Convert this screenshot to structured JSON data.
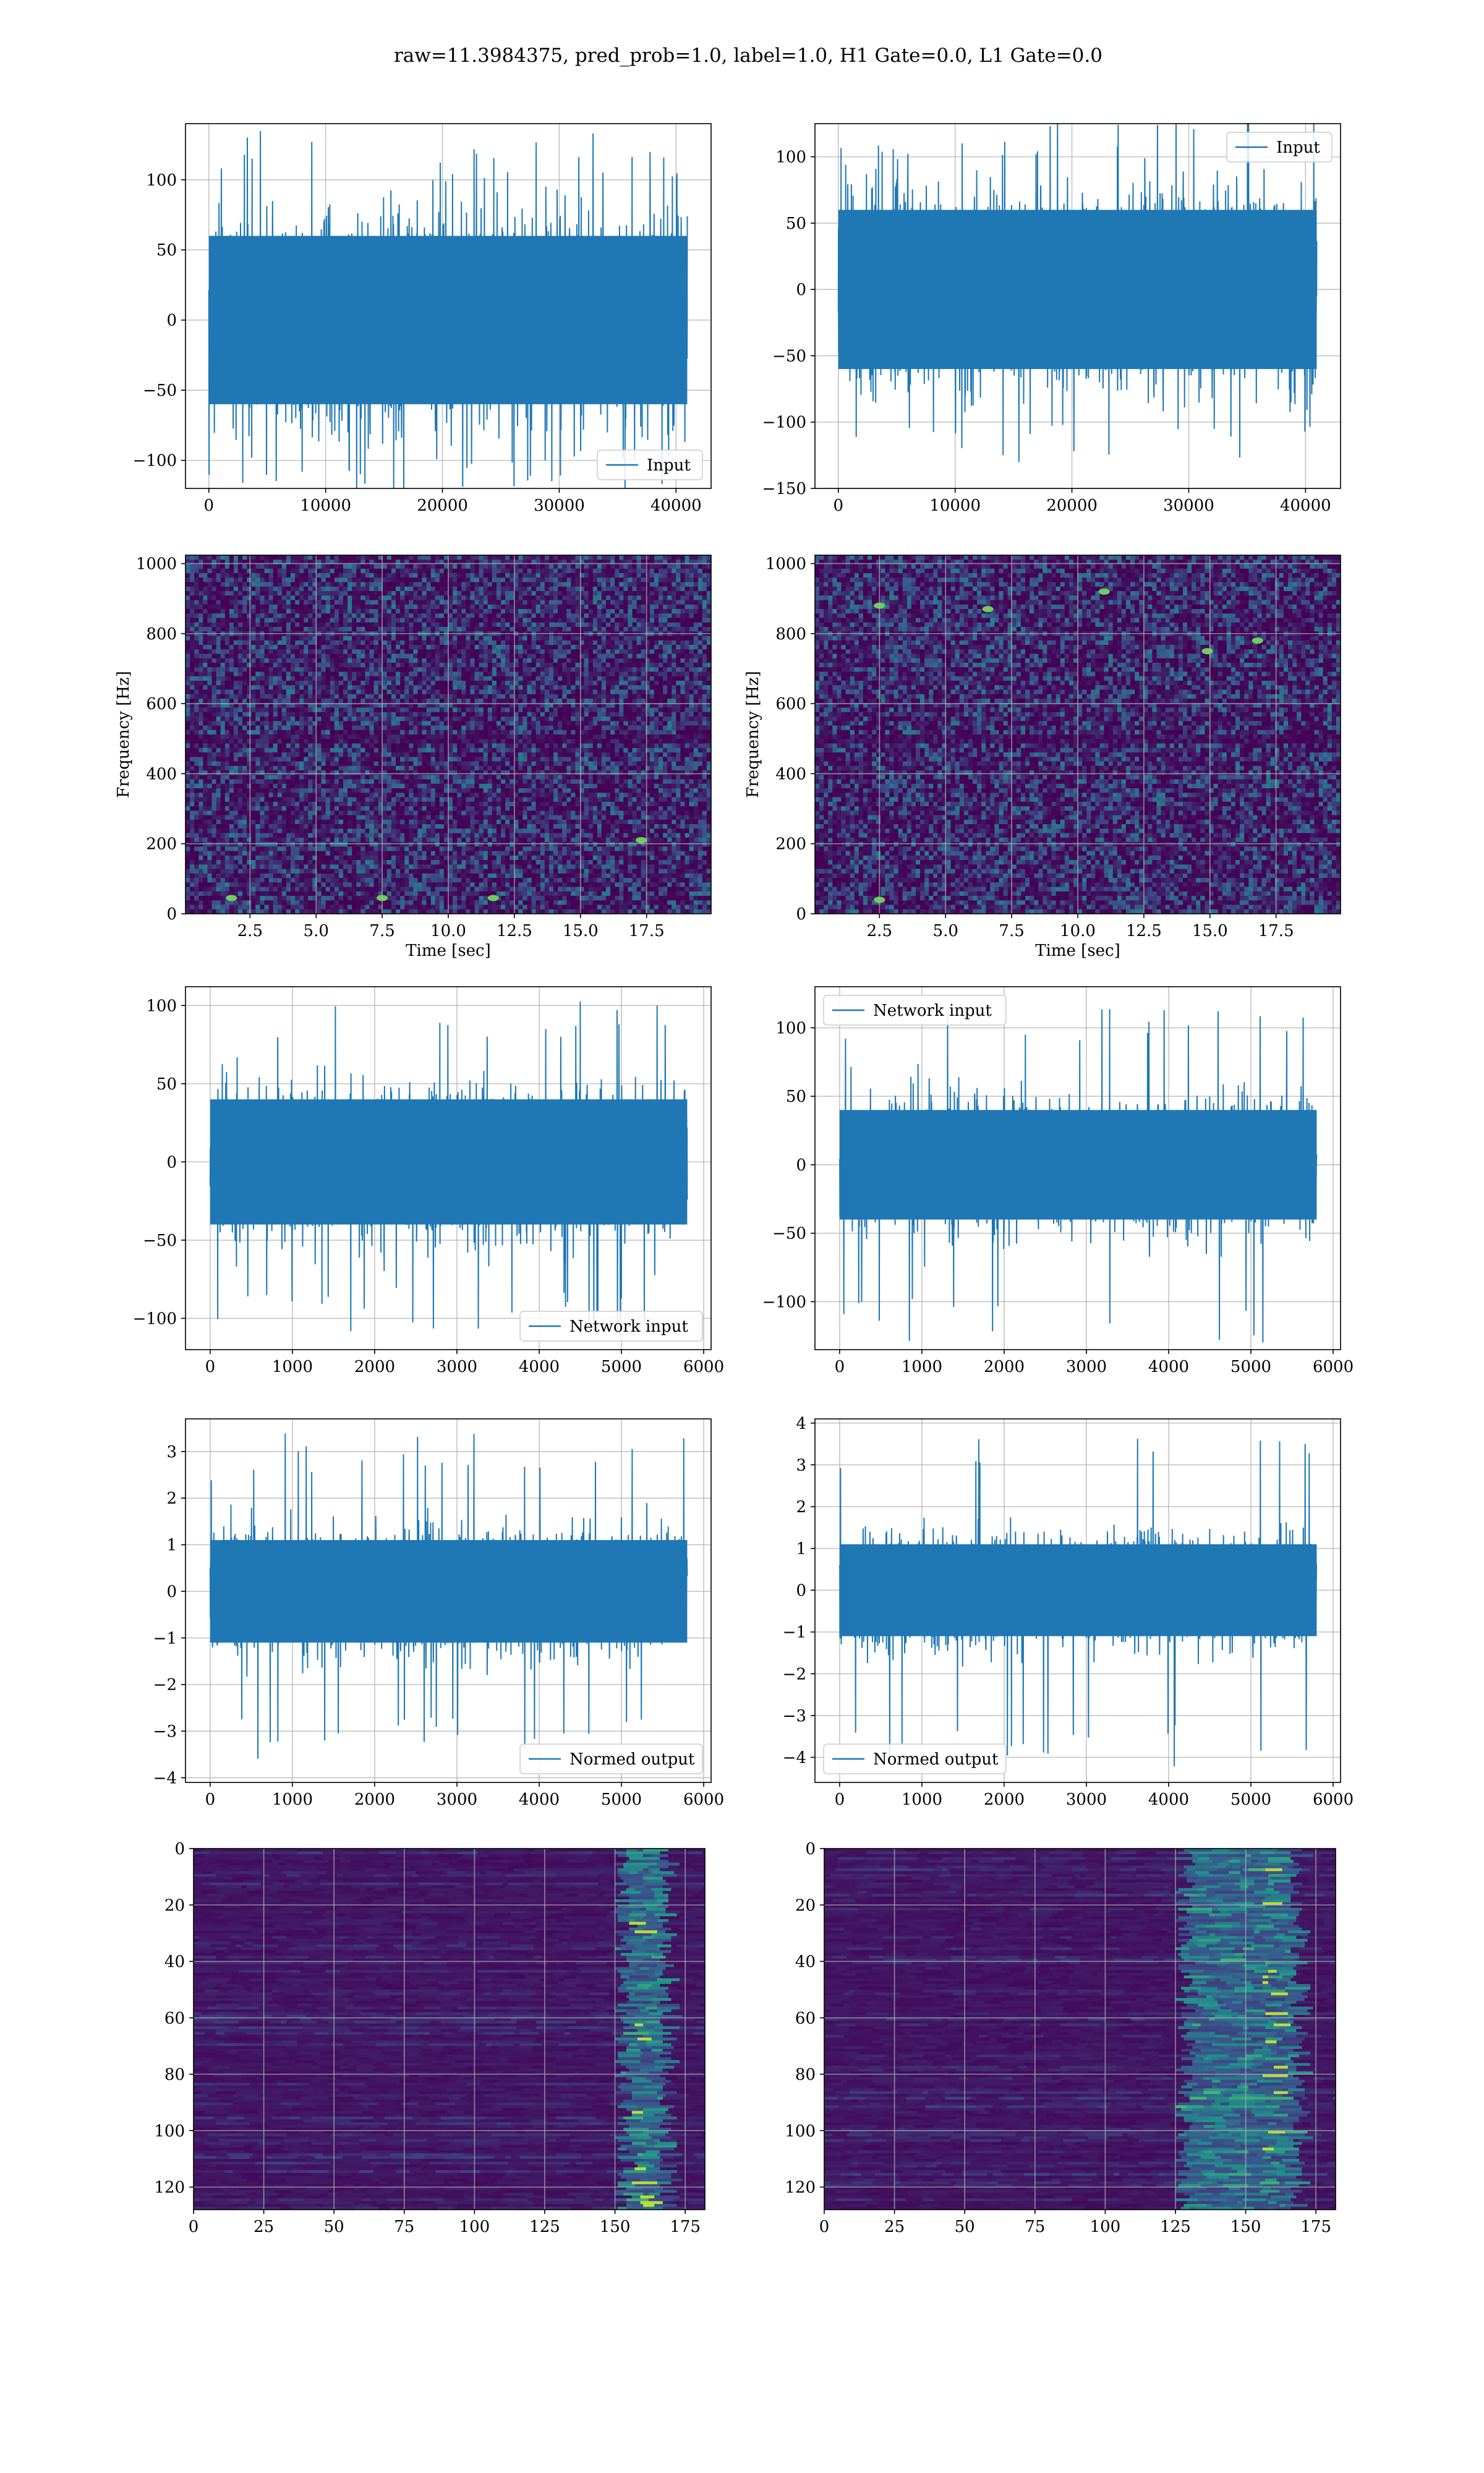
{
  "figure": {
    "suptitle": "raw=11.3984375, pred_prob=1.0, label=1.0, H1 Gate=0.0, L1 Gate=0.0"
  },
  "colors": {
    "line": "#1f77b4",
    "grid": "#b0b0b0",
    "viridis": [
      "#440154",
      "#3b528b",
      "#21918c",
      "#5ec962",
      "#fde725"
    ]
  },
  "chart_data": [
    {
      "id": "h1_input",
      "type": "line",
      "ylabel": "",
      "xlabel": "",
      "legend": {
        "label": "Input",
        "loc": "lower-right"
      },
      "xlim": [
        -2000,
        43000
      ],
      "ylim": [
        -120,
        140
      ],
      "xticks": [
        0,
        10000,
        20000,
        30000,
        40000
      ],
      "xtick_labels": [
        "0",
        "10000",
        "20000",
        "30000",
        "40000"
      ],
      "yticks": [
        -100,
        -50,
        0,
        50,
        100
      ],
      "ytick_labels": [
        "−100",
        "−50",
        "0",
        "50",
        "100"
      ],
      "signal": {
        "x_start": 0,
        "x_end": 40960,
        "core_amplitude": 60,
        "spike_max": 135,
        "spike_min": -128
      }
    },
    {
      "id": "l1_input",
      "type": "line",
      "ylabel": "",
      "xlabel": "",
      "legend": {
        "label": "Input",
        "loc": "upper-right"
      },
      "xlim": [
        -2000,
        43000
      ],
      "ylim": [
        -150,
        125
      ],
      "xticks": [
        0,
        10000,
        20000,
        30000,
        40000
      ],
      "xtick_labels": [
        "0",
        "10000",
        "20000",
        "30000",
        "40000"
      ],
      "yticks": [
        -150,
        -100,
        -50,
        0,
        50,
        100
      ],
      "ytick_labels": [
        "−150",
        "−100",
        "−50",
        "0",
        "50",
        "100"
      ],
      "signal": {
        "x_start": 0,
        "x_end": 40960,
        "core_amplitude": 60,
        "spike_max": 130,
        "spike_min": -135
      }
    },
    {
      "id": "h1_spectrogram",
      "type": "heatmap",
      "xlabel": "Time [sec]",
      "ylabel": "Frequency [Hz]",
      "xlim": [
        0.06,
        19.94
      ],
      "ylim": [
        0,
        1024
      ],
      "xticks": [
        2.5,
        5.0,
        7.5,
        10.0,
        12.5,
        15.0,
        17.5
      ],
      "xtick_labels": [
        "2.5",
        "5.0",
        "7.5",
        "10.0",
        "12.5",
        "15.0",
        "17.5"
      ],
      "yticks": [
        0,
        200,
        400,
        600,
        800,
        1000
      ],
      "ytick_labels": [
        "0",
        "200",
        "400",
        "600",
        "800",
        "1000"
      ],
      "colormap": "viridis",
      "hotspots": [
        [
          1.8,
          45
        ],
        [
          11.7,
          45
        ],
        [
          17.3,
          210
        ],
        [
          7.5,
          45
        ]
      ]
    },
    {
      "id": "l1_spectrogram",
      "type": "heatmap",
      "xlabel": "Time [sec]",
      "ylabel": "Frequency [Hz]",
      "xlim": [
        0.06,
        19.94
      ],
      "ylim": [
        0,
        1024
      ],
      "xticks": [
        2.5,
        5.0,
        7.5,
        10.0,
        12.5,
        15.0,
        17.5
      ],
      "xtick_labels": [
        "2.5",
        "5.0",
        "7.5",
        "10.0",
        "12.5",
        "15.0",
        "17.5"
      ],
      "yticks": [
        0,
        200,
        400,
        600,
        800,
        1000
      ],
      "ytick_labels": [
        "0",
        "200",
        "400",
        "600",
        "800",
        "1000"
      ],
      "colormap": "viridis",
      "hotspots": [
        [
          6.6,
          870
        ],
        [
          11.0,
          920
        ],
        [
          2.5,
          880
        ],
        [
          14.9,
          750
        ],
        [
          16.8,
          780
        ],
        [
          2.5,
          40
        ]
      ]
    },
    {
      "id": "h1_network_input",
      "type": "line",
      "ylabel": "",
      "xlabel": "",
      "legend": {
        "label": "Network input",
        "loc": "lower-right"
      },
      "xlim": [
        -300,
        6090
      ],
      "ylim": [
        -120,
        112
      ],
      "xticks": [
        0,
        1000,
        2000,
        3000,
        4000,
        5000,
        6000
      ],
      "xtick_labels": [
        "0",
        "1000",
        "2000",
        "3000",
        "4000",
        "5000",
        "6000"
      ],
      "yticks": [
        -100,
        -50,
        0,
        50,
        100
      ],
      "ytick_labels": [
        "−100",
        "−50",
        "0",
        "50",
        "100"
      ],
      "signal": {
        "x_start": 0,
        "x_end": 5800,
        "core_amplitude": 40,
        "spike_max": 103,
        "spike_min": -112
      }
    },
    {
      "id": "l1_network_input",
      "type": "line",
      "ylabel": "",
      "xlabel": "",
      "legend": {
        "label": "Network input",
        "loc": "upper-left"
      },
      "xlim": [
        -300,
        6090
      ],
      "ylim": [
        -135,
        130
      ],
      "xticks": [
        0,
        1000,
        2000,
        3000,
        4000,
        5000,
        6000
      ],
      "xtick_labels": [
        "0",
        "1000",
        "2000",
        "3000",
        "4000",
        "5000",
        "6000"
      ],
      "yticks": [
        -100,
        -50,
        0,
        50,
        100
      ],
      "ytick_labels": [
        "−100",
        "−50",
        "0",
        "50",
        "100"
      ],
      "signal": {
        "x_start": 0,
        "x_end": 5800,
        "core_amplitude": 40,
        "spike_max": 117,
        "spike_min": -130
      }
    },
    {
      "id": "h1_normed_output",
      "type": "line",
      "ylabel": "",
      "xlabel": "",
      "legend": {
        "label": "Normed output",
        "loc": "lower-right"
      },
      "xlim": [
        -300,
        6090
      ],
      "ylim": [
        -4.1,
        3.7
      ],
      "xticks": [
        0,
        1000,
        2000,
        3000,
        4000,
        5000,
        6000
      ],
      "xtick_labels": [
        "0",
        "1000",
        "2000",
        "3000",
        "4000",
        "5000",
        "6000"
      ],
      "yticks": [
        -4,
        -3,
        -2,
        -1,
        0,
        1,
        2,
        3
      ],
      "ytick_labels": [
        "−4",
        "−3",
        "−2",
        "−1",
        "0",
        "1",
        "2",
        "3"
      ],
      "signal": {
        "x_start": 0,
        "x_end": 5800,
        "core_amplitude": 1.1,
        "spike_max": 3.4,
        "spike_min": -3.6
      }
    },
    {
      "id": "l1_normed_output",
      "type": "line",
      "ylabel": "",
      "xlabel": "",
      "legend": {
        "label": "Normed output",
        "loc": "lower-left"
      },
      "xlim": [
        -300,
        6090
      ],
      "ylim": [
        -4.6,
        4.1
      ],
      "xticks": [
        0,
        1000,
        2000,
        3000,
        4000,
        5000,
        6000
      ],
      "xtick_labels": [
        "0",
        "1000",
        "2000",
        "3000",
        "4000",
        "5000",
        "6000"
      ],
      "yticks": [
        -4,
        -3,
        -2,
        -1,
        0,
        1,
        2,
        3,
        4
      ],
      "ytick_labels": [
        "−4",
        "−3",
        "−2",
        "−1",
        "0",
        "1",
        "2",
        "3",
        "4"
      ],
      "signal": {
        "x_start": 0,
        "x_end": 5800,
        "core_amplitude": 1.1,
        "spike_max": 3.7,
        "spike_min": -4.3
      }
    },
    {
      "id": "h1_activation_map",
      "type": "heatmap",
      "xlabel": "",
      "ylabel": "",
      "xlim": [
        0,
        182
      ],
      "ylim": [
        128,
        0
      ],
      "xticks": [
        0,
        25,
        50,
        75,
        100,
        125,
        150,
        175
      ],
      "xtick_labels": [
        "0",
        "25",
        "50",
        "75",
        "100",
        "125",
        "150",
        "175"
      ],
      "yticks": [
        0,
        20,
        40,
        60,
        80,
        100,
        120
      ],
      "ytick_labels": [
        "0",
        "20",
        "40",
        "60",
        "80",
        "100",
        "120"
      ],
      "colormap": "viridis",
      "active_columns": [
        150,
        165
      ]
    },
    {
      "id": "l1_activation_map",
      "type": "heatmap",
      "xlabel": "",
      "ylabel": "",
      "xlim": [
        0,
        182
      ],
      "ylim": [
        128,
        0
      ],
      "xticks": [
        0,
        25,
        50,
        75,
        100,
        125,
        150,
        175
      ],
      "xtick_labels": [
        "0",
        "25",
        "50",
        "75",
        "100",
        "125",
        "150",
        "175"
      ],
      "yticks": [
        0,
        20,
        40,
        60,
        80,
        100,
        120
      ],
      "ytick_labels": [
        "0",
        "20",
        "40",
        "60",
        "80",
        "100",
        "120"
      ],
      "colormap": "viridis",
      "active_columns": [
        125,
        165
      ]
    }
  ]
}
